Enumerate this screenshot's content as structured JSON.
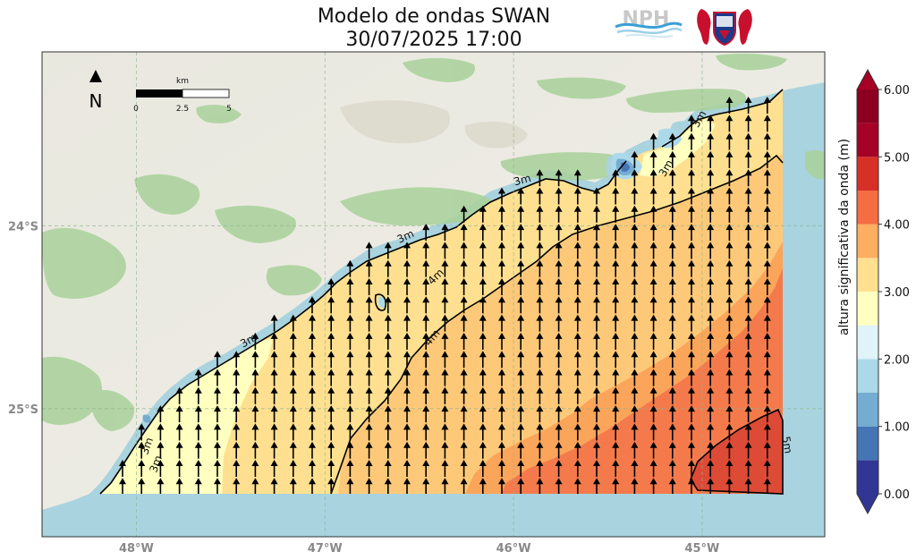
{
  "chart_data": {
    "type": "heatmap",
    "title_line1": "Modelo de ondas SWAN",
    "title_line2": "30/07/2025 17:00",
    "x_ticks": [
      "48°W",
      "47°W",
      "46°W",
      "45°W"
    ],
    "x_tick_values": [
      -48,
      -47,
      -46,
      -45
    ],
    "y_ticks": [
      "24°S",
      "25°S"
    ],
    "y_tick_values": [
      -24,
      -25
    ],
    "xlim": [
      -48.5,
      -44.35
    ],
    "ylim": [
      -25.7,
      -23.05
    ],
    "colorbar": {
      "label": "altura significativa da onda (m)",
      "tick_labels": [
        "0.00",
        "1.00",
        "2.00",
        "3.00",
        "4.00",
        "5.00",
        "6.00"
      ],
      "levels": [
        0,
        0.5,
        1,
        1.5,
        2,
        2.5,
        3,
        3.5,
        4,
        4.5,
        5,
        5.5,
        6
      ],
      "colors": [
        "#313695",
        "#4575b4",
        "#74add1",
        "#abd9e9",
        "#e0f3f8",
        "#ffffbf",
        "#fee090",
        "#fdae61",
        "#f46d43",
        "#d73027",
        "#a50026",
        "#8b0020"
      ]
    },
    "contour_labels": [
      "3m",
      "3m",
      "3m",
      "3m",
      "3m",
      "3m",
      "3m",
      "4m",
      "4m",
      "5m"
    ],
    "contour_values_m": [
      3,
      4,
      5
    ],
    "wave_direction": "N",
    "north_arrow_label": "N",
    "scale_bar": {
      "unit": "km",
      "ticks": [
        "0",
        "2.5",
        "5"
      ]
    },
    "logo_text": "NPH",
    "colors": {
      "sea": "#a9d3df",
      "land": "#ecebe3",
      "vegetation": "#a9d19a",
      "frame": "#333333",
      "grid": "#8fb58f"
    }
  }
}
